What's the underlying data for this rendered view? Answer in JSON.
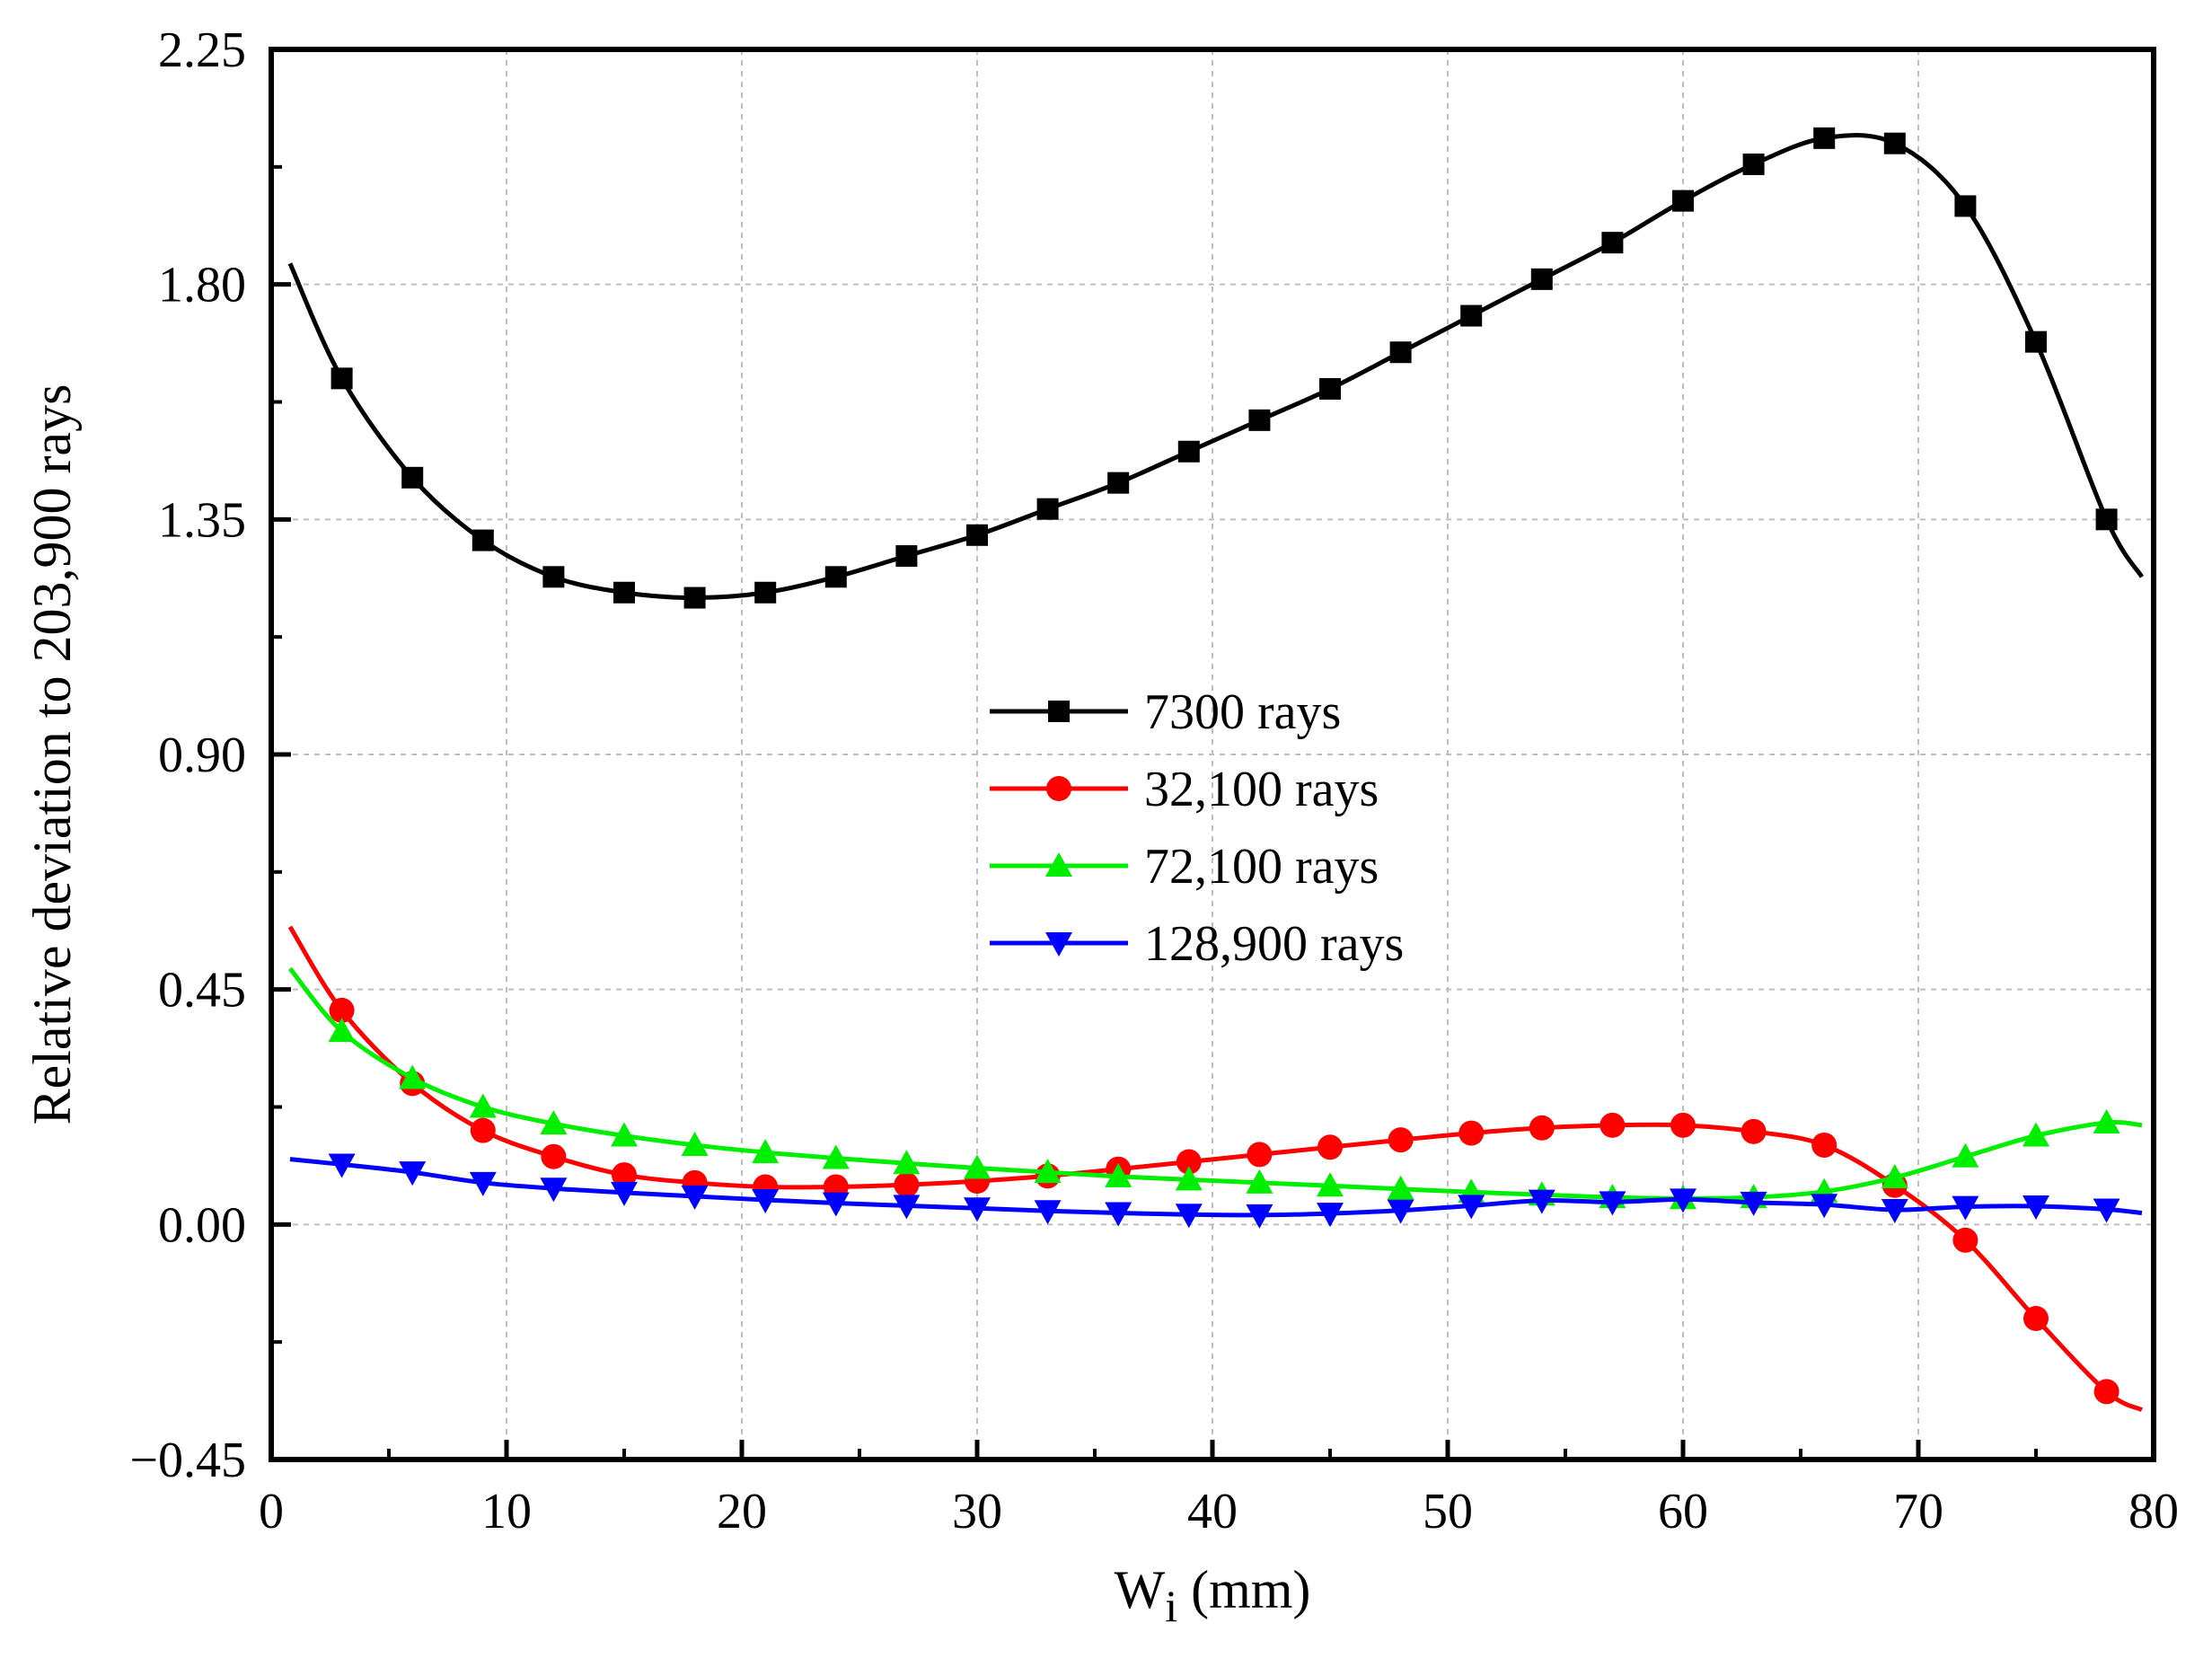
{
  "chart_data": {
    "type": "line",
    "title": "",
    "xlabel": "W",
    "xlabel_sub": "i",
    "xlabel_unit": " (mm)",
    "ylabel": "Relative deviation to 203,900 rays",
    "xlim": [
      0,
      80
    ],
    "ylim": [
      -0.45,
      2.25
    ],
    "xticks": [
      0,
      10,
      20,
      30,
      40,
      50,
      60,
      70,
      80
    ],
    "xtick_labels": [
      "0",
      "10",
      "20",
      "30",
      "40",
      "50",
      "60",
      "70",
      "80"
    ],
    "yticks": [
      -0.45,
      0.0,
      0.45,
      0.9,
      1.35,
      1.8,
      2.25
    ],
    "ytick_labels": [
      "−0.45",
      "0.00",
      "0.45",
      "0.90",
      "1.35",
      "1.80",
      "2.25"
    ],
    "grid": true,
    "legend_position": "center",
    "series": [
      {
        "name": "7300 rays",
        "color": "#000000",
        "marker": "square",
        "x": [
          0.8,
          3,
          6,
          9,
          12,
          15,
          18,
          21,
          24,
          27,
          30,
          33,
          36,
          39,
          42,
          45,
          48,
          51,
          54,
          57,
          60,
          63,
          66,
          69,
          72,
          75,
          78,
          79.5
        ],
        "y": [
          1.84,
          1.62,
          1.43,
          1.31,
          1.24,
          1.21,
          1.2,
          1.21,
          1.24,
          1.28,
          1.32,
          1.37,
          1.42,
          1.48,
          1.54,
          1.6,
          1.67,
          1.74,
          1.81,
          1.88,
          1.96,
          2.03,
          2.08,
          2.07,
          1.95,
          1.69,
          1.35,
          1.24
        ]
      },
      {
        "name": "32,100 rays",
        "color": "#ff0000",
        "marker": "circle",
        "x": [
          0.8,
          3,
          6,
          9,
          12,
          15,
          18,
          21,
          24,
          27,
          30,
          33,
          36,
          39,
          42,
          45,
          48,
          51,
          54,
          57,
          60,
          63,
          66,
          69,
          72,
          75,
          78,
          79.5
        ],
        "y": [
          0.57,
          0.41,
          0.27,
          0.18,
          0.13,
          0.095,
          0.08,
          0.072,
          0.072,
          0.076,
          0.083,
          0.093,
          0.106,
          0.12,
          0.134,
          0.148,
          0.162,
          0.175,
          0.185,
          0.19,
          0.19,
          0.178,
          0.152,
          0.075,
          -0.03,
          -0.18,
          -0.32,
          -0.355
        ]
      },
      {
        "name": "72,100 rays",
        "color": "#00ee00",
        "marker": "triangle-up",
        "x": [
          0.8,
          3,
          6,
          9,
          12,
          15,
          18,
          21,
          24,
          27,
          30,
          33,
          36,
          39,
          42,
          45,
          48,
          51,
          54,
          57,
          60,
          63,
          66,
          69,
          72,
          75,
          78,
          79.5
        ],
        "y": [
          0.49,
          0.37,
          0.28,
          0.225,
          0.193,
          0.17,
          0.152,
          0.138,
          0.127,
          0.117,
          0.108,
          0.1,
          0.092,
          0.086,
          0.08,
          0.074,
          0.068,
          0.062,
          0.057,
          0.052,
          0.05,
          0.052,
          0.063,
          0.09,
          0.13,
          0.17,
          0.195,
          0.19
        ]
      },
      {
        "name": "128,900 rays",
        "color": "#0000ff",
        "marker": "triangle-down",
        "x": [
          0.8,
          3,
          6,
          9,
          12,
          15,
          18,
          21,
          24,
          27,
          30,
          33,
          36,
          39,
          42,
          45,
          48,
          51,
          54,
          57,
          60,
          63,
          66,
          69,
          72,
          75,
          78,
          79.5
        ],
        "y": [
          0.125,
          0.115,
          0.1,
          0.08,
          0.069,
          0.061,
          0.054,
          0.047,
          0.041,
          0.036,
          0.031,
          0.026,
          0.022,
          0.019,
          0.018,
          0.021,
          0.027,
          0.036,
          0.046,
          0.043,
          0.048,
          0.042,
          0.038,
          0.028,
          0.034,
          0.035,
          0.029,
          0.022
        ]
      }
    ]
  }
}
